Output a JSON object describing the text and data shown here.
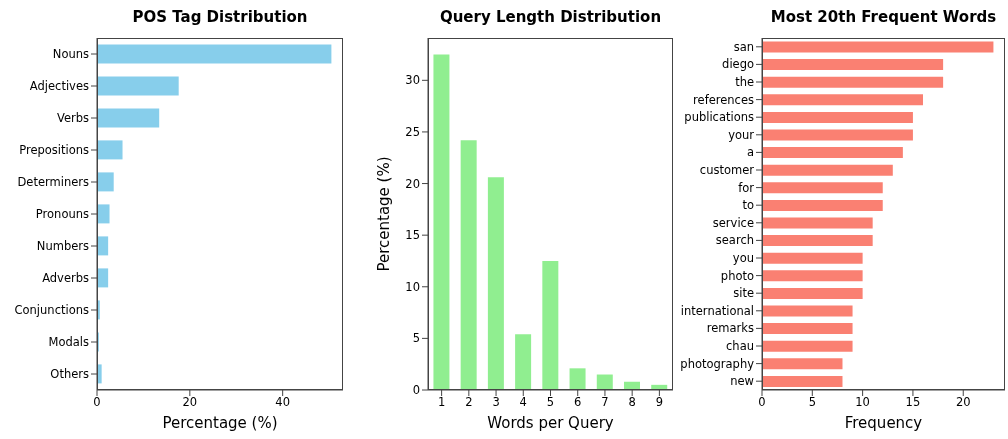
{
  "chart_data": [
    {
      "type": "bar",
      "orientation": "horizontal",
      "title": "POS Tag Distribution",
      "xlabel": "Percentage (%)",
      "categories": [
        "Nouns",
        "Adjectives",
        "Verbs",
        "Prepositions",
        "Determiners",
        "Pronouns",
        "Numbers",
        "Adverbs",
        "Conjunctions",
        "Modals",
        "Others"
      ],
      "values": [
        50.5,
        17.6,
        13.4,
        5.5,
        3.6,
        2.7,
        2.4,
        2.4,
        0.6,
        0.4,
        1.0
      ],
      "color": "#87ceeb",
      "xlim": [
        0,
        53
      ],
      "xticks": [
        0,
        20,
        40
      ]
    },
    {
      "type": "bar",
      "title": "Query Length Distribution",
      "xlabel": "Words per Query",
      "ylabel": "Percentage (%)",
      "categories": [
        "1",
        "2",
        "3",
        "4",
        "5",
        "6",
        "7",
        "8",
        "9"
      ],
      "values": [
        32.5,
        24.2,
        20.6,
        5.4,
        12.5,
        2.1,
        1.5,
        0.8,
        0.5
      ],
      "color": "#90ee90",
      "ylim": [
        0,
        34.1
      ],
      "yticks": [
        0,
        5,
        10,
        15,
        20,
        25,
        30
      ]
    },
    {
      "type": "bar",
      "orientation": "horizontal",
      "title": "Most 20th Frequent Words",
      "xlabel": "Frequency",
      "categories": [
        "san",
        "diego",
        "the",
        "references",
        "publications",
        "your",
        "a",
        "customer",
        "for",
        "to",
        "service",
        "search",
        "you",
        "photo",
        "site",
        "international",
        "remarks",
        "chau",
        "photography",
        "new"
      ],
      "values": [
        23,
        18,
        18,
        16,
        15,
        15,
        14,
        13,
        12,
        12,
        11,
        11,
        10,
        10,
        10,
        9,
        9,
        9,
        8,
        8
      ],
      "color": "#fa8072",
      "xlim": [
        0,
        24.15
      ],
      "xticks": [
        0,
        5,
        10,
        15,
        20
      ]
    }
  ]
}
